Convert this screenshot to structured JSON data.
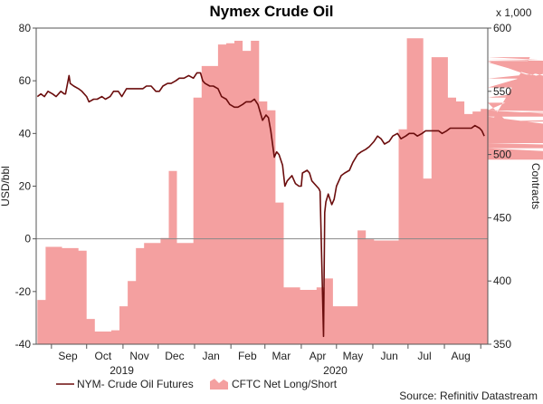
{
  "chart_data": {
    "type": "combo-line-area",
    "title": "Nymex Crude Oil",
    "y_left": {
      "label": "USD/bbl",
      "ylim": [
        -40,
        80
      ],
      "ticks": [
        -40,
        -20,
        0,
        20,
        40,
        60,
        80
      ]
    },
    "y_right": {
      "label": "Contracts",
      "scale_note": "x 1,000",
      "ylim": [
        350,
        600
      ],
      "ticks": [
        350,
        400,
        450,
        500,
        550,
        600
      ]
    },
    "x_axis": {
      "range": [
        "2019-08-19",
        "2020-09-07"
      ],
      "month_labels": [
        {
          "label": "Sep",
          "date": "2019-09-15"
        },
        {
          "label": "Oct",
          "date": "2019-10-15"
        },
        {
          "label": "Nov",
          "date": "2019-11-15"
        },
        {
          "label": "Dec",
          "date": "2019-12-15"
        },
        {
          "label": "Jan",
          "date": "2020-01-15"
        },
        {
          "label": "Feb",
          "date": "2020-02-15"
        },
        {
          "label": "Mar",
          "date": "2020-03-15"
        },
        {
          "label": "Apr",
          "date": "2020-04-15"
        },
        {
          "label": "May",
          "date": "2020-05-15"
        },
        {
          "label": "Jun",
          "date": "2020-06-15"
        },
        {
          "label": "Jul",
          "date": "2020-07-15"
        },
        {
          "label": "Aug",
          "date": "2020-08-15"
        }
      ],
      "month_ticks": [
        "2019-09-01",
        "2019-10-01",
        "2019-11-01",
        "2019-12-01",
        "2020-01-01",
        "2020-02-01",
        "2020-03-01",
        "2020-04-01",
        "2020-05-01",
        "2020-06-01",
        "2020-07-01",
        "2020-08-01",
        "2020-09-01"
      ],
      "year_labels": [
        {
          "label": "2019",
          "date": "2019-10-31"
        },
        {
          "label": "2020",
          "date": "2020-04-30"
        }
      ]
    },
    "series": [
      {
        "name": "NYM- Crude Oil Futures",
        "axis": "left",
        "color": "#6b0d0d",
        "style": "line",
        "points": [
          [
            "2019-08-20",
            54
          ],
          [
            "2019-08-23",
            55
          ],
          [
            "2019-08-26",
            54
          ],
          [
            "2019-08-29",
            56
          ],
          [
            "2019-09-02",
            55
          ],
          [
            "2019-09-05",
            54
          ],
          [
            "2019-09-09",
            56
          ],
          [
            "2019-09-12",
            55
          ],
          [
            "2019-09-13",
            55
          ],
          [
            "2019-09-16",
            62
          ],
          [
            "2019-09-17",
            59
          ],
          [
            "2019-09-20",
            58
          ],
          [
            "2019-09-24",
            57
          ],
          [
            "2019-09-27",
            56
          ],
          [
            "2019-10-01",
            54
          ],
          [
            "2019-10-03",
            52
          ],
          [
            "2019-10-07",
            53
          ],
          [
            "2019-10-10",
            53
          ],
          [
            "2019-10-14",
            54
          ],
          [
            "2019-10-17",
            53
          ],
          [
            "2019-10-21",
            54
          ],
          [
            "2019-10-24",
            56
          ],
          [
            "2019-10-28",
            56
          ],
          [
            "2019-10-31",
            54
          ],
          [
            "2019-11-04",
            57
          ],
          [
            "2019-11-07",
            57
          ],
          [
            "2019-11-11",
            57
          ],
          [
            "2019-11-14",
            57
          ],
          [
            "2019-11-18",
            57
          ],
          [
            "2019-11-21",
            58
          ],
          [
            "2019-11-25",
            58
          ],
          [
            "2019-11-29",
            56
          ],
          [
            "2019-12-02",
            56
          ],
          [
            "2019-12-05",
            58
          ],
          [
            "2019-12-09",
            59
          ],
          [
            "2019-12-12",
            59
          ],
          [
            "2019-12-16",
            60
          ],
          [
            "2019-12-19",
            61
          ],
          [
            "2019-12-23",
            61
          ],
          [
            "2019-12-27",
            62
          ],
          [
            "2019-12-31",
            61
          ],
          [
            "2020-01-03",
            63
          ],
          [
            "2020-01-06",
            63
          ],
          [
            "2020-01-08",
            60
          ],
          [
            "2020-01-10",
            59
          ],
          [
            "2020-01-14",
            58
          ],
          [
            "2020-01-17",
            58
          ],
          [
            "2020-01-21",
            57
          ],
          [
            "2020-01-24",
            54
          ],
          [
            "2020-01-28",
            53
          ],
          [
            "2020-01-31",
            51
          ],
          [
            "2020-02-04",
            50
          ],
          [
            "2020-02-07",
            50
          ],
          [
            "2020-02-11",
            51
          ],
          [
            "2020-02-14",
            52
          ],
          [
            "2020-02-18",
            52
          ],
          [
            "2020-02-21",
            53
          ],
          [
            "2020-02-24",
            51
          ],
          [
            "2020-02-26",
            48
          ],
          [
            "2020-02-28",
            45
          ],
          [
            "2020-03-02",
            47
          ],
          [
            "2020-03-04",
            46
          ],
          [
            "2020-03-06",
            41
          ],
          [
            "2020-03-09",
            31
          ],
          [
            "2020-03-11",
            33
          ],
          [
            "2020-03-13",
            32
          ],
          [
            "2020-03-16",
            28
          ],
          [
            "2020-03-18",
            20
          ],
          [
            "2020-03-20",
            22
          ],
          [
            "2020-03-24",
            24
          ],
          [
            "2020-03-27",
            21
          ],
          [
            "2020-03-30",
            20
          ],
          [
            "2020-04-01",
            20
          ],
          [
            "2020-04-02",
            25
          ],
          [
            "2020-04-06",
            26
          ],
          [
            "2020-04-08",
            25
          ],
          [
            "2020-04-10",
            22
          ],
          [
            "2020-04-14",
            20
          ],
          [
            "2020-04-16",
            19
          ],
          [
            "2020-04-17",
            18
          ],
          [
            "2020-04-20",
            -37
          ],
          [
            "2020-04-21",
            10
          ],
          [
            "2020-04-22",
            14
          ],
          [
            "2020-04-24",
            17
          ],
          [
            "2020-04-27",
            13
          ],
          [
            "2020-04-29",
            15
          ],
          [
            "2020-05-01",
            20
          ],
          [
            "2020-05-05",
            24
          ],
          [
            "2020-05-08",
            25
          ],
          [
            "2020-05-12",
            26
          ],
          [
            "2020-05-15",
            29
          ],
          [
            "2020-05-19",
            32
          ],
          [
            "2020-05-22",
            33
          ],
          [
            "2020-05-26",
            34
          ],
          [
            "2020-05-29",
            35
          ],
          [
            "2020-06-02",
            37
          ],
          [
            "2020-06-05",
            39
          ],
          [
            "2020-06-08",
            38
          ],
          [
            "2020-06-11",
            36
          ],
          [
            "2020-06-15",
            37
          ],
          [
            "2020-06-18",
            39
          ],
          [
            "2020-06-22",
            40
          ],
          [
            "2020-06-25",
            38
          ],
          [
            "2020-06-29",
            39
          ],
          [
            "2020-07-02",
            40
          ],
          [
            "2020-07-06",
            40
          ],
          [
            "2020-07-09",
            39
          ],
          [
            "2020-07-13",
            40
          ],
          [
            "2020-07-16",
            41
          ],
          [
            "2020-07-20",
            41
          ],
          [
            "2020-07-23",
            41
          ],
          [
            "2020-07-27",
            41
          ],
          [
            "2020-07-30",
            40
          ],
          [
            "2020-08-03",
            41
          ],
          [
            "2020-08-06",
            42
          ],
          [
            "2020-08-10",
            42
          ],
          [
            "2020-08-13",
            42
          ],
          [
            "2020-08-17",
            42
          ],
          [
            "2020-08-20",
            42
          ],
          [
            "2020-08-24",
            42
          ],
          [
            "2020-08-27",
            43
          ],
          [
            "2020-08-31",
            42
          ],
          [
            "2020-09-02",
            41
          ],
          [
            "2020-09-04",
            39
          ]
        ]
      },
      {
        "name": "CFTC Net Long/Short",
        "axis": "right",
        "color": "#f4a0a0",
        "style": "step-area",
        "weekly_start": "2019-08-20",
        "values": [
          385,
          427,
          427,
          426,
          426,
          424,
          370,
          360,
          360,
          361,
          380,
          400,
          426,
          430,
          430,
          434,
          487,
          430,
          430,
          545,
          570,
          570,
          587,
          588,
          590,
          582,
          590,
          542,
          535,
          462,
          395,
          395,
          393,
          393,
          395,
          402,
          380,
          380,
          380,
          440,
          433,
          432,
          432,
          432,
          520,
          592,
          592,
          481,
          577,
          577,
          545,
          542,
          532,
          534,
          536,
          535,
          535,
          541,
          521,
          521,
          577,
          575,
          575,
          574,
          553,
          553,
          574,
          553,
          574,
          546,
          545,
          545,
          560,
          560,
          573,
          535,
          533,
          535,
          526,
          530,
          509,
          505,
          496,
          496
        ]
      }
    ],
    "legend": [
      "NYM- Crude Oil Futures",
      "CFTC Net Long/Short"
    ],
    "legend_position": "bottom-left",
    "grid": false,
    "source": "Source: Refinitiv Datastream"
  }
}
